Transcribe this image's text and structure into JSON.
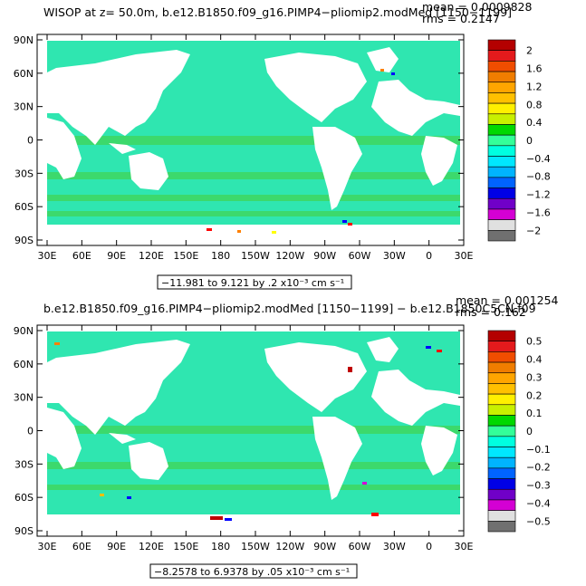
{
  "colors": {
    "ocean": "#2fe6b0",
    "ocean_band": "#3cd96c",
    "land": "#ffffff",
    "frame": "#000000"
  },
  "panels": [
    {
      "title": "WISOP at z=  50.0m, b.e12.B1850.f09_g16.PIMP4−pliomip2.modMed [1150−1199]",
      "stats": {
        "mean": "mean = 0.0009828",
        "rms": "rms = 0.2147"
      },
      "range_label": "−11.981 to 9.121 by .2 x10⁻³ cm s⁻¹",
      "colorbar": {
        "labels": [
          "2",
          "1.6",
          "1.2",
          "0.8",
          "0.4",
          "0",
          "−0.4",
          "−0.8",
          "−1.2",
          "−1.6",
          "−2"
        ],
        "colors": [
          "#b40000",
          "#e41a1c",
          "#f04d00",
          "#f07d00",
          "#ffa500",
          "#ffc000",
          "#fff000",
          "#c8f000",
          "#00d800",
          "#33ff99",
          "#00ffe0",
          "#00e8ff",
          "#00b4ff",
          "#0064ff",
          "#0000e6",
          "#7000c8",
          "#d400d4",
          "#e0e0e0",
          "#707070"
        ]
      }
    },
    {
      "title": "b.e12.B1850.f09_g16.PIMP4−pliomip2.modMed [1150−1199] − b.e12.B1850C5CN.f09",
      "stats": {
        "mean": "mean = 0.001254",
        "rms": "rms = 0.162"
      },
      "range_label": "−8.2578 to 6.9378 by .05 x10⁻³ cm s⁻¹",
      "colorbar": {
        "labels": [
          "0.5",
          "0.4",
          "0.3",
          "0.2",
          "0.1",
          "0",
          "−0.1",
          "−0.2",
          "−0.3",
          "−0.4",
          "−0.5"
        ],
        "colors": [
          "#b40000",
          "#e41a1c",
          "#f04d00",
          "#f07d00",
          "#ffa500",
          "#ffc000",
          "#fff000",
          "#c8f000",
          "#00d800",
          "#33ff99",
          "#00ffe0",
          "#00e8ff",
          "#00b4ff",
          "#0064ff",
          "#0000e6",
          "#7000c8",
          "#d400d4",
          "#e0e0e0",
          "#707070"
        ]
      }
    }
  ],
  "map_axes": {
    "lat_labels": [
      "90N",
      "60N",
      "30N",
      "0",
      "30S",
      "60S",
      "90S"
    ],
    "lon_labels": [
      "30E",
      "60E",
      "90E",
      "120E",
      "150E",
      "180",
      "150W",
      "120W",
      "90W",
      "60W",
      "30W",
      "0",
      "30E"
    ]
  }
}
